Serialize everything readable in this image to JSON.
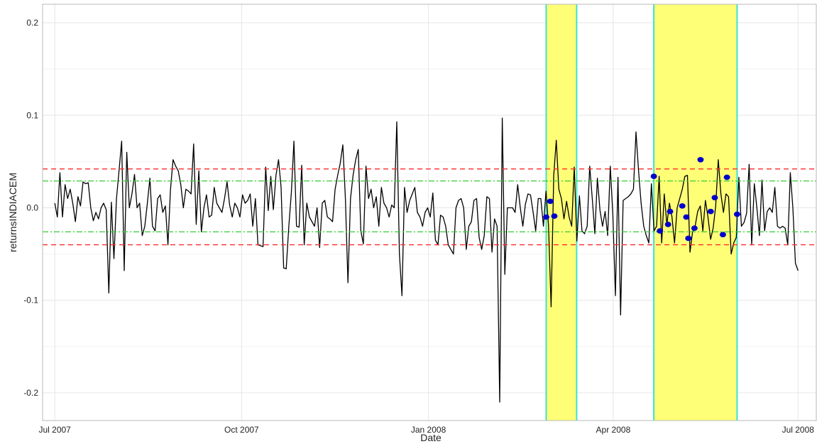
{
  "chart_data": {
    "type": "line",
    "xlabel": "Date",
    "ylabel": "returnsINDIACEM",
    "xlim": [
      "2007-06-25",
      "2008-07-10"
    ],
    "ylim": [
      -0.23,
      0.22
    ],
    "x_ticks": [
      {
        "date": "2007-07-01",
        "label": "Jul 2007"
      },
      {
        "date": "2007-10-01",
        "label": "Oct 2007"
      },
      {
        "date": "2008-01-01",
        "label": "Jan 2008"
      },
      {
        "date": "2008-04-01",
        "label": "Apr 2008"
      },
      {
        "date": "2008-07-01",
        "label": "Jul 2008"
      }
    ],
    "y_ticks": [
      {
        "value": 0.2,
        "label": "0.2"
      },
      {
        "value": 0.1,
        "label": "0.1"
      },
      {
        "value": 0.0,
        "label": "0.0"
      },
      {
        "value": -0.1,
        "label": "-0.1"
      },
      {
        "value": -0.2,
        "label": "-0.2"
      }
    ],
    "grid": true,
    "colors": {
      "series": "#000000",
      "outer_band": "#ff2a2a",
      "inner_band": "#33cc33",
      "highlight_fill": "#ffff77",
      "highlight_edge": "#40e0d0",
      "points": "#0000cc"
    },
    "reference_lines": [
      {
        "kind": "outer",
        "y": 0.042
      },
      {
        "kind": "outer",
        "y": -0.04
      },
      {
        "kind": "inner",
        "y": 0.029
      },
      {
        "kind": "inner",
        "y": -0.026
      }
    ],
    "highlight_regions": [
      {
        "start": "2008-02-28",
        "end": "2008-03-14"
      },
      {
        "start": "2008-04-21",
        "end": "2008-06-01"
      }
    ],
    "series": [
      {
        "x_start": "2007-07-01",
        "x_end": "2008-07-01",
        "values": [
          0.005,
          -0.01,
          0.038,
          -0.01,
          0.025,
          0.01,
          0.02,
          0.005,
          -0.015,
          0.012,
          0.002,
          0.028,
          0.026,
          0.027,
          0.0,
          -0.014,
          -0.005,
          -0.012,
          0.0,
          0.005,
          -0.002,
          -0.092,
          0.006,
          -0.055,
          0.01,
          0.04,
          0.072,
          -0.068,
          0.06,
          0.0,
          0.015,
          0.036,
          0.0,
          0.005,
          -0.03,
          -0.02,
          0.005,
          0.032,
          -0.02,
          -0.025,
          0.01,
          0.014,
          -0.005,
          0.002,
          -0.04,
          0.02,
          0.052,
          0.045,
          0.04,
          0.025,
          0.0,
          0.02,
          0.018,
          0.015,
          0.069,
          -0.018,
          0.04,
          -0.026,
          0.0,
          0.014,
          -0.01,
          -0.008,
          0.022,
          0.005,
          0.0,
          -0.005,
          0.01,
          0.028,
          0.003,
          -0.01,
          0.005,
          0.0,
          -0.01,
          0.014,
          0.005,
          0.008,
          0.015,
          -0.02,
          0.01,
          -0.04,
          -0.041,
          -0.042,
          0.044,
          -0.003,
          0.034,
          -0.002,
          0.035,
          0.052,
          0.022,
          -0.065,
          -0.066,
          -0.02,
          0.017,
          0.072,
          -0.02,
          -0.021,
          0.046,
          -0.04,
          0.005,
          -0.01,
          -0.015,
          -0.02,
          0.0,
          -0.043,
          0.005,
          0.008,
          -0.01,
          -0.012,
          -0.015,
          0.02,
          0.035,
          0.048,
          0.068,
          0.01,
          -0.081,
          0.01,
          0.035,
          0.052,
          0.063,
          -0.025,
          -0.039,
          0.045,
          0.01,
          0.02,
          0.0,
          0.012,
          -0.02,
          0.022,
          0.005,
          0.0,
          -0.01,
          0.003,
          0.0,
          0.093,
          -0.05,
          -0.095,
          0.022,
          -0.005,
          0.008,
          0.015,
          0.022,
          -0.005,
          -0.01,
          -0.02,
          -0.005,
          0.0,
          -0.01,
          0.016,
          -0.035,
          -0.04,
          -0.008,
          -0.01,
          -0.02,
          -0.04,
          -0.045,
          -0.05,
          0.0,
          0.008,
          0.01,
          0.0,
          -0.045,
          -0.02,
          -0.015,
          0.008,
          0.01,
          -0.032,
          -0.045,
          -0.03,
          0.012,
          0.01,
          -0.048,
          -0.012,
          -0.02,
          -0.21,
          0.097,
          -0.072,
          0.0,
          0.0,
          0.0,
          -0.005,
          0.025,
          0.0,
          -0.02,
          0.004,
          0.015,
          0.014,
          -0.005,
          -0.025,
          0.01,
          0.01,
          -0.02,
          0.018,
          -0.02,
          -0.107,
          0.035,
          0.073,
          0.02,
          0.01,
          -0.012,
          0.007,
          -0.01,
          -0.02,
          0.044,
          -0.036,
          0.013,
          -0.025,
          -0.028,
          -0.02,
          0.045,
          0.01,
          -0.028,
          0.032,
          -0.003,
          -0.02,
          -0.004,
          -0.03,
          0.045,
          -0.008,
          -0.095,
          0.033,
          -0.116,
          0.008,
          0.01,
          0.012,
          0.015,
          0.02,
          0.082,
          0.04,
          0.005,
          -0.02,
          -0.03,
          -0.038,
          0.026,
          -0.025,
          -0.02,
          0.034,
          -0.038,
          0.015,
          -0.018,
          0.005,
          -0.01,
          -0.038,
          0.0,
          0.01,
          0.02,
          0.034,
          0.035,
          -0.048,
          -0.026,
          -0.02,
          -0.004,
          0.002,
          -0.025,
          0.008,
          -0.01,
          -0.034,
          -0.022,
          0.002,
          0.052,
          0.015,
          -0.005,
          0.015,
          0.012,
          -0.05,
          -0.038,
          -0.032,
          0.033,
          -0.02,
          -0.016,
          -0.006,
          0.047,
          -0.04,
          0.026,
          0.0,
          -0.03,
          0.03,
          -0.025,
          -0.004,
          0.0,
          -0.005,
          0.022,
          -0.02,
          -0.022,
          -0.02,
          -0.022,
          -0.04,
          0.038,
          0.0,
          -0.06,
          -0.068
        ]
      }
    ],
    "points": [
      {
        "x": "2008-02-28",
        "y": -0.01
      },
      {
        "x": "2008-03-01",
        "y": 0.007
      },
      {
        "x": "2008-03-03",
        "y": -0.009
      },
      {
        "x": "2008-04-21",
        "y": 0.034
      },
      {
        "x": "2008-04-24",
        "y": -0.025
      },
      {
        "x": "2008-04-28",
        "y": -0.018
      },
      {
        "x": "2008-04-29",
        "y": -0.004
      },
      {
        "x": "2008-05-05",
        "y": 0.002
      },
      {
        "x": "2008-05-07",
        "y": -0.01
      },
      {
        "x": "2008-05-08",
        "y": -0.033
      },
      {
        "x": "2008-05-11",
        "y": -0.022
      },
      {
        "x": "2008-05-14",
        "y": 0.052
      },
      {
        "x": "2008-05-19",
        "y": -0.004
      },
      {
        "x": "2008-05-21",
        "y": 0.011
      },
      {
        "x": "2008-05-25",
        "y": -0.029
      },
      {
        "x": "2008-05-27",
        "y": 0.033
      },
      {
        "x": "2008-06-01",
        "y": -0.007
      }
    ]
  }
}
